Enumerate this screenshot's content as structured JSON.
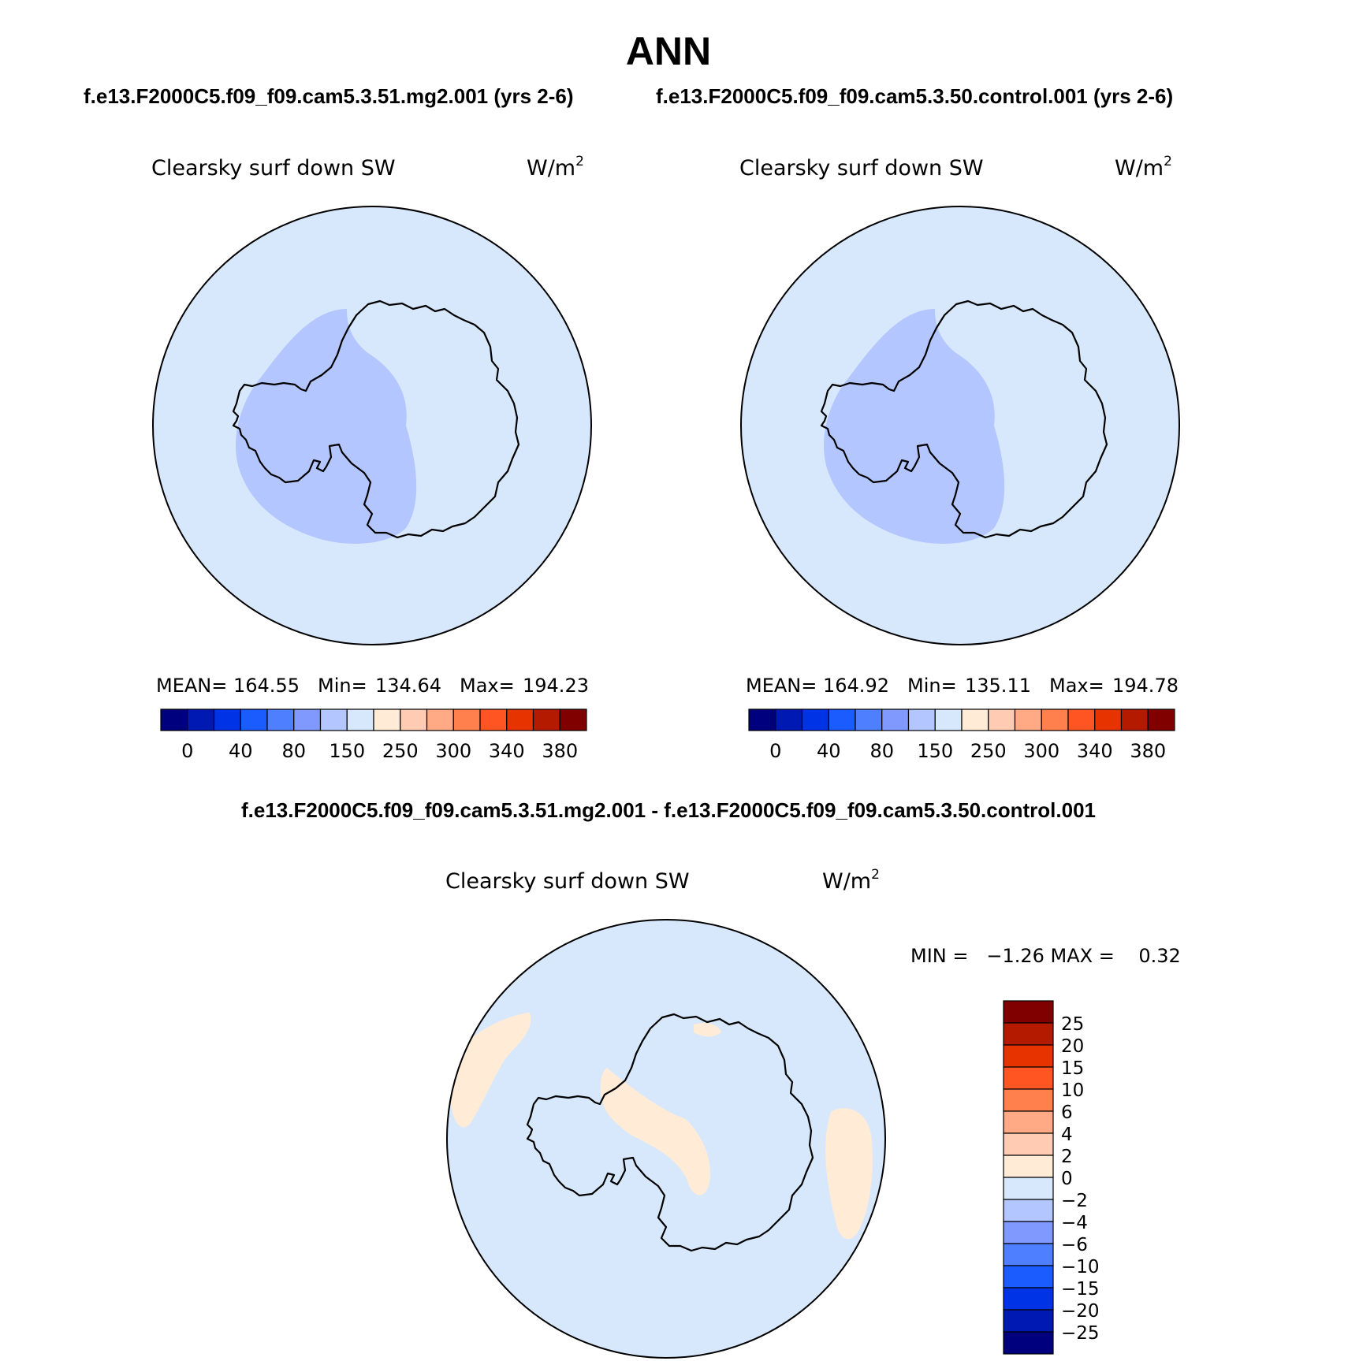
{
  "title": "ANN",
  "header": {
    "left_case": "f.e13.F2000C5.f09_f09.cam5.3.51.mg2.001 (yrs 2-6)",
    "right_case": "f.e13.F2000C5.f09_f09.cam5.3.50.control.001 (yrs 2-6)",
    "diff_title": "f.e13.F2000C5.f09_f09.cam5.3.51.mg2.001 - f.e13.F2000C5.f09_f09.cam5.3.50.control.001"
  },
  "panels": {
    "left": {
      "variable": "Clearsky surf down SW",
      "units": "W/m",
      "units_sup": "2",
      "mean_label": "MEAN=",
      "mean": "164.55",
      "min_label": "Min=",
      "min": "134.64",
      "max_label": "Max=",
      "max": "194.23"
    },
    "right": {
      "variable": "Clearsky surf down SW",
      "units": "W/m",
      "units_sup": "2",
      "mean_label": "MEAN=",
      "mean": "164.92",
      "min_label": "Min=",
      "min": "135.11",
      "max_label": "Max=",
      "max": "194.78"
    },
    "diff": {
      "variable": "Clearsky surf down SW",
      "units": "W/m",
      "units_sup": "2",
      "minmax": "MIN =   −1.26 MAX =    0.32"
    }
  },
  "colorbar_main": {
    "colors": [
      "#00007f",
      "#0019b2",
      "#0033e6",
      "#1a5cff",
      "#4d7fff",
      "#8099ff",
      "#b3c6ff",
      "#d7e8fc",
      "#ffebd6",
      "#ffccb3",
      "#ffaa85",
      "#ff7f4d",
      "#ff5522",
      "#e63300",
      "#b31a00",
      "#800000"
    ],
    "labels": [
      "0",
      "40",
      "80",
      "150",
      "250",
      "300",
      "340",
      "380"
    ]
  },
  "colorbar_diff": {
    "colors": [
      "#00007f",
      "#0019b2",
      "#0033e6",
      "#1a5cff",
      "#4d7fff",
      "#8099ff",
      "#b3c6ff",
      "#d7e8fc",
      "#ffebd6",
      "#ffccb3",
      "#ffaa85",
      "#ff7f4d",
      "#ff5522",
      "#e63300",
      "#b31a00",
      "#800000"
    ],
    "labels": [
      "25",
      "20",
      "15",
      "10",
      "6",
      "4",
      "2",
      "0",
      "−2",
      "−4",
      "−6",
      "−10",
      "−15",
      "−20",
      "−25"
    ]
  },
  "map_colors": {
    "ocean": "#d7e8fc",
    "lowered": "#b3c6ff",
    "raised": "#ffebd6",
    "coast": "#000000"
  }
}
